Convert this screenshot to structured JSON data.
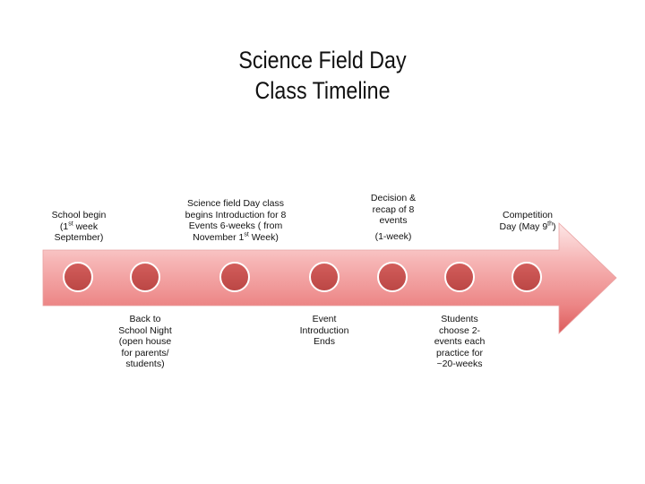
{
  "title": {
    "line1": "Science Field Day",
    "line2": "Class Timeline"
  },
  "colors": {
    "arrow_light": "#fbe3e3",
    "arrow_mid": "#f08f8f",
    "arrow_dark": "#d85555",
    "dot_fill": "#c9514f",
    "dot_stroke": "#ffffff"
  },
  "events_above": [
    {
      "pre": "School begin (1",
      "sup": "st",
      "post": " week September)"
    },
    {
      "pre": "Science field Day class begins Introduction for 8 Events   6-weeks ( from November 1",
      "sup": "st",
      "post": " Week)"
    },
    {
      "pre": "Decision & recap of 8 events",
      "sup": "",
      "post": "",
      "sub": "(1-week)"
    },
    {
      "pre": "Competition Day (May 9",
      "sup": "th",
      "post": ")"
    }
  ],
  "events_below": [
    {
      "text": "Back to School Night (open house for parents/ students)"
    },
    {
      "text": "Event Introduction Ends"
    },
    {
      "text": "Students choose 2-events each practice for ~20-weeks"
    }
  ]
}
